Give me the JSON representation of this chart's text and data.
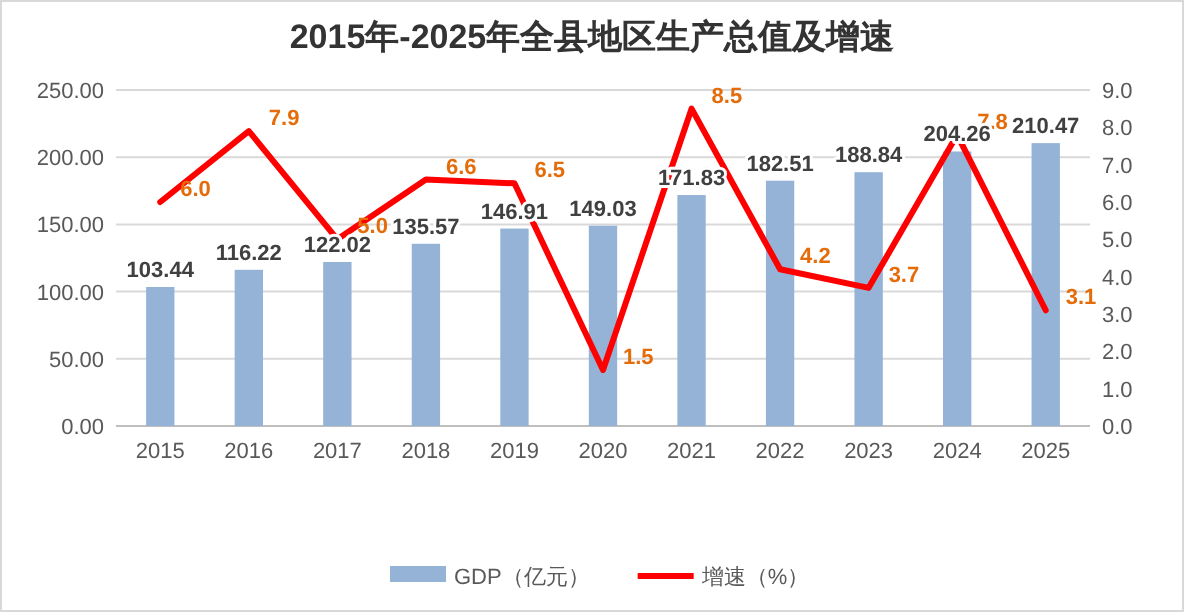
{
  "chart_data": {
    "type": "bar",
    "title": "2015年-2025年全县地区生产总值及增速",
    "categories": [
      "2015",
      "2016",
      "2017",
      "2018",
      "2019",
      "2020",
      "2021",
      "2022",
      "2023",
      "2024",
      "2025"
    ],
    "series": [
      {
        "name": "GDP（亿元）",
        "axis": "y",
        "color": "#95b3d7",
        "values": [
          103.44,
          116.22,
          122.02,
          135.57,
          146.91,
          149.03,
          171.83,
          182.51,
          188.84,
          204.26,
          210.47
        ],
        "value_labels": [
          "103.44",
          "116.22",
          "122.02",
          "135.57",
          "146.91",
          "149.03",
          "171.83",
          "182.51",
          "188.84",
          "204.26",
          "210.47"
        ]
      },
      {
        "name": "增速（%）",
        "type": "line",
        "axis": "y2",
        "color": "#ff0000",
        "line_style": "solid",
        "values": [
          6.0,
          7.9,
          5.0,
          6.6,
          6.5,
          1.5,
          8.5,
          4.2,
          3.7,
          7.8,
          3.1
        ],
        "value_labels": [
          "6.0",
          "7.9",
          "5.0",
          "6.6",
          "6.5",
          "1.5",
          "8.5",
          "4.2",
          "3.7",
          "7.8",
          "3.1"
        ]
      }
    ],
    "ylim": [
      0,
      250
    ],
    "yticks": [
      {
        "value": 0,
        "label": "0.00"
      },
      {
        "value": 50,
        "label": "50.00"
      },
      {
        "value": 100,
        "label": "100.00"
      },
      {
        "value": 150,
        "label": "150.00"
      },
      {
        "value": 200,
        "label": "200.00"
      },
      {
        "value": 250,
        "label": "250.00"
      }
    ],
    "y2lim": [
      0,
      9
    ],
    "y2ticks": [
      {
        "value": 0,
        "label": "0.0"
      },
      {
        "value": 1,
        "label": "1.0"
      },
      {
        "value": 2,
        "label": "2.0"
      },
      {
        "value": 3,
        "label": "3.0"
      },
      {
        "value": 4,
        "label": "4.0"
      },
      {
        "value": 5,
        "label": "5.0"
      },
      {
        "value": 6,
        "label": "6.0"
      },
      {
        "value": 7,
        "label": "7.0"
      },
      {
        "value": 8,
        "label": "8.0"
      },
      {
        "value": 9,
        "label": "9.0"
      }
    ],
    "grid": "y",
    "legend": "bottom"
  }
}
